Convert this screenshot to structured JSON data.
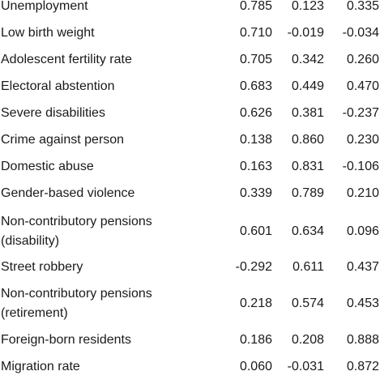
{
  "table": {
    "rows": [
      {
        "label": "Unemployment",
        "values": [
          "0.785",
          "0.123",
          "0.335"
        ]
      },
      {
        "label": "Low birth weight",
        "values": [
          "0.710",
          "-0.019",
          "-0.034"
        ]
      },
      {
        "label": "Adolescent fertility rate",
        "values": [
          "0.705",
          "0.342",
          "0.260"
        ]
      },
      {
        "label": "Electoral abstention",
        "values": [
          "0.683",
          "0.449",
          "0.470"
        ]
      },
      {
        "label": "Severe disabilities",
        "values": [
          "0.626",
          "0.381",
          "-0.237"
        ]
      },
      {
        "label": "Crime against person",
        "values": [
          "0.138",
          "0.860",
          "0.230"
        ]
      },
      {
        "label": "Domestic abuse",
        "values": [
          "0.163",
          "0.831",
          "-0.106"
        ]
      },
      {
        "label": "Gender-based violence",
        "values": [
          "0.339",
          "0.789",
          "0.210"
        ]
      },
      {
        "label": "Non-contributory pensions (disability)",
        "values": [
          "0.601",
          "0.634",
          "0.096"
        ]
      },
      {
        "label": "Street robbery",
        "values": [
          "-0.292",
          "0.611",
          "0.437"
        ]
      },
      {
        "label": "Non-contributory pensions (retirement)",
        "values": [
          "0.218",
          "0.574",
          "0.453"
        ]
      },
      {
        "label": "Foreign-born residents",
        "values": [
          "0.186",
          "0.208",
          "0.888"
        ]
      },
      {
        "label": "Migration rate",
        "values": [
          "0.060",
          "-0.031",
          "0.872"
        ]
      }
    ]
  }
}
